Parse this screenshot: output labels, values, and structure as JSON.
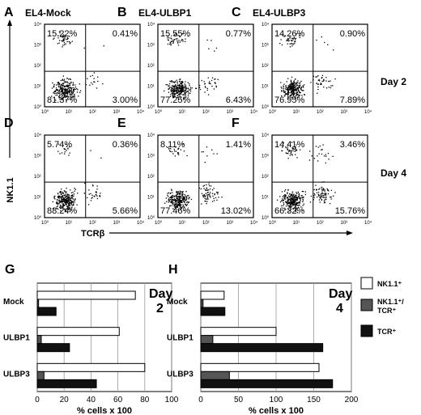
{
  "labels": {
    "ylabel": "NK1.1",
    "xlabel": "TCRβ",
    "day2": "Day 2",
    "day4": "Day 4"
  },
  "flow_panels": [
    {
      "letter": "A",
      "title": "EL4-Mock",
      "ul": "15.22%",
      "ur": "0.41%",
      "ll": "81.37%",
      "lr": "3.00%"
    },
    {
      "letter": "B",
      "title": "EL4-ULBP1",
      "ul": "15.55%",
      "ur": "0.77%",
      "ll": "77.25%",
      "lr": "6.43%"
    },
    {
      "letter": "C",
      "title": "EL4-ULBP3",
      "ul": "14.26%",
      "ur": "0.90%",
      "ll": "76.95%",
      "lr": "7.89%"
    },
    {
      "letter": "D",
      "title": "",
      "ul": "5.74%",
      "ur": "0.36%",
      "ll": "88.24%",
      "lr": "5.66%"
    },
    {
      "letter": "E",
      "title": "",
      "ul": "8.11%",
      "ur": "1.41%",
      "ll": "77.46%",
      "lr": "13.02%"
    },
    {
      "letter": "F",
      "title": "",
      "ul": "14.41%",
      "ur": "3.46%",
      "ll": "66.32%",
      "lr": "15.76%"
    }
  ],
  "flow_ticks": [
    "10⁰",
    "10¹",
    "10²",
    "10³",
    "10⁴"
  ],
  "bar_panels": {
    "G": {
      "letter": "G",
      "day_word": "Day",
      "day_num": "2",
      "ticks": [
        "0",
        "20",
        "40",
        "60",
        "80",
        "100"
      ]
    },
    "H": {
      "letter": "H",
      "day_word": "Day",
      "day_num": "4",
      "ticks": [
        "0",
        "50",
        "100",
        "150",
        "200"
      ]
    }
  },
  "bar_xlabel": "% cells x 100",
  "legend": [
    {
      "line1": "NK1.1⁺",
      "line2": "",
      "color": "#ffffff"
    },
    {
      "line1": "NK1.1⁺/",
      "line2": "TCR⁺",
      "color": "#555555"
    },
    {
      "line1": "TCR⁺",
      "line2": "",
      "color": "#111111"
    }
  ],
  "chart_data": [
    {
      "type": "bar",
      "orientation": "horizontal",
      "panel": "G",
      "categories": [
        "Mock",
        "ULBP1",
        "ULBP3"
      ],
      "series": [
        {
          "name": "NK1.1⁺",
          "values": [
            73,
            61,
            80
          ]
        },
        {
          "name": "NK1.1⁺/ TCR⁺",
          "values": [
            1,
            3,
            5
          ]
        },
        {
          "name": "TCR⁺",
          "values": [
            14,
            24,
            44
          ]
        }
      ],
      "xlabel": "% cells x 100",
      "xlim": [
        0,
        100
      ],
      "grid": true
    },
    {
      "type": "bar",
      "orientation": "horizontal",
      "panel": "H",
      "categories": [
        "Mock",
        "ULBP1",
        "ULBP3"
      ],
      "series": [
        {
          "name": "NK1.1⁺",
          "values": [
            31,
            100,
            157
          ]
        },
        {
          "name": "NK1.1⁺/ TCR⁺",
          "values": [
            3,
            16,
            38
          ]
        },
        {
          "name": "TCR⁺",
          "values": [
            32,
            162,
            175
          ]
        }
      ],
      "xlabel": "% cells x 100",
      "xlim": [
        0,
        200
      ],
      "grid": true
    }
  ]
}
